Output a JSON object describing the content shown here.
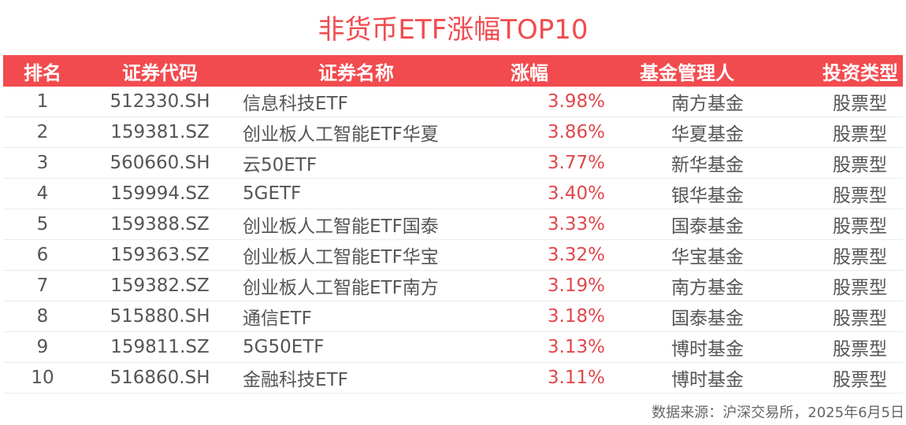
{
  "title": "非货币ETF涨幅TOP10",
  "table": {
    "headers": [
      "排名",
      "证券代码",
      "证券名称",
      "涨幅",
      "基金管理人",
      "投资类型"
    ],
    "rows": [
      {
        "rank": "1",
        "code": "512330.SH",
        "name": "信息科技ETF",
        "change": "3.98%",
        "manager": "南方基金",
        "type": "股票型"
      },
      {
        "rank": "2",
        "code": "159381.SZ",
        "name": "创业板人工智能ETF华夏",
        "change": "3.86%",
        "manager": "华夏基金",
        "type": "股票型"
      },
      {
        "rank": "3",
        "code": "560660.SH",
        "name": "云50ETF",
        "change": "3.77%",
        "manager": "新华基金",
        "type": "股票型"
      },
      {
        "rank": "4",
        "code": "159994.SZ",
        "name": "5GETF",
        "change": "3.40%",
        "manager": "银华基金",
        "type": "股票型"
      },
      {
        "rank": "5",
        "code": "159388.SZ",
        "name": "创业板人工智能ETF国泰",
        "change": "3.33%",
        "manager": "国泰基金",
        "type": "股票型"
      },
      {
        "rank": "6",
        "code": "159363.SZ",
        "name": "创业板人工智能ETF华宝",
        "change": "3.32%",
        "manager": "华宝基金",
        "type": "股票型"
      },
      {
        "rank": "7",
        "code": "159382.SZ",
        "name": "创业板人工智能ETF南方",
        "change": "3.19%",
        "manager": "南方基金",
        "type": "股票型"
      },
      {
        "rank": "8",
        "code": "515880.SH",
        "name": "通信ETF",
        "change": "3.18%",
        "manager": "国泰基金",
        "type": "股票型"
      },
      {
        "rank": "9",
        "code": "159811.SZ",
        "name": "5G50ETF",
        "change": "3.13%",
        "manager": "博时基金",
        "type": "股票型"
      },
      {
        "rank": "10",
        "code": "516860.SH",
        "name": "金融科技ETF",
        "change": "3.11%",
        "manager": "博时基金",
        "type": "股票型"
      }
    ]
  },
  "source": "数据来源：沪深交易所，2025年6月5日",
  "colors": {
    "accent": "#f24b4f",
    "change_text": "#e0474c",
    "body_text": "#555555",
    "divider": "#e9ebf0"
  },
  "chart_data": {
    "type": "table",
    "title": "非货币ETF涨幅TOP10",
    "columns": [
      "排名",
      "证券代码",
      "证券名称",
      "涨幅",
      "基金管理人",
      "投资类型"
    ],
    "rows": [
      [
        1,
        "512330.SH",
        "信息科技ETF",
        3.98,
        "南方基金",
        "股票型"
      ],
      [
        2,
        "159381.SZ",
        "创业板人工智能ETF华夏",
        3.86,
        "华夏基金",
        "股票型"
      ],
      [
        3,
        "560660.SH",
        "云50ETF",
        3.77,
        "新华基金",
        "股票型"
      ],
      [
        4,
        "159994.SZ",
        "5GETF",
        3.4,
        "银华基金",
        "股票型"
      ],
      [
        5,
        "159388.SZ",
        "创业板人工智能ETF国泰",
        3.33,
        "国泰基金",
        "股票型"
      ],
      [
        6,
        "159363.SZ",
        "创业板人工智能ETF华宝",
        3.32,
        "华宝基金",
        "股票型"
      ],
      [
        7,
        "159382.SZ",
        "创业板人工智能ETF南方",
        3.19,
        "南方基金",
        "股票型"
      ],
      [
        8,
        "515880.SH",
        "通信ETF",
        3.18,
        "国泰基金",
        "股票型"
      ],
      [
        9,
        "159811.SZ",
        "5G50ETF",
        3.13,
        "博时基金",
        "股票型"
      ],
      [
        10,
        "516860.SH",
        "金融科技ETF",
        3.11,
        "博时基金",
        "股票型"
      ]
    ],
    "note": "数据来源：沪深交易所，2025年6月5日"
  }
}
